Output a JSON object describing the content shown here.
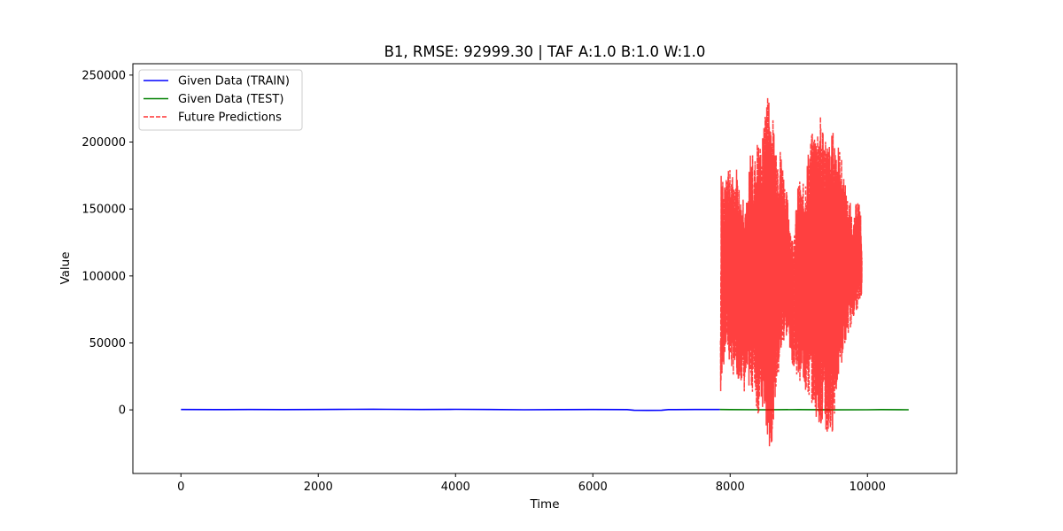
{
  "chart_data": {
    "type": "line",
    "title": "B1, RMSE: 92999.30 | TAF A:1.0 B:1.0 W:1.0",
    "xlabel": "Time",
    "ylabel": "Value",
    "xlim": [
      -700,
      11300
    ],
    "ylim": [
      -47500,
      258500
    ],
    "x_ticks": [
      0,
      2000,
      4000,
      6000,
      8000,
      10000
    ],
    "y_ticks": [
      0,
      50000,
      100000,
      150000,
      200000,
      250000
    ],
    "grid": false,
    "legend_position": "upper-left",
    "series": [
      {
        "name": "Given Data (TRAIN)",
        "color": "#0000ff",
        "style": "solid",
        "x": [
          0,
          500,
          1000,
          1500,
          2000,
          2500,
          2800,
          3000,
          3500,
          4000,
          4500,
          5000,
          5500,
          6000,
          6500,
          6600,
          6800,
          7000,
          7100,
          7500,
          7850
        ],
        "y": [
          300,
          200,
          300,
          200,
          300,
          400,
          500,
          400,
          300,
          400,
          300,
          100,
          200,
          300,
          200,
          -300,
          -400,
          -300,
          200,
          300,
          300
        ]
      },
      {
        "name": "Given Data (TEST)",
        "color": "#008000",
        "style": "solid",
        "x": [
          7850,
          8000,
          8500,
          9000,
          9500,
          10000,
          10200,
          10600
        ],
        "y": [
          300,
          200,
          100,
          200,
          0,
          100,
          200,
          100
        ]
      },
      {
        "name": "Future Predictions",
        "color": "#ff0000",
        "style": "dashed",
        "x": [
          7860,
          7870,
          7880,
          7890,
          7900,
          7950,
          8000,
          8050,
          8100,
          8150,
          8200,
          8250,
          8300,
          8350,
          8400,
          8450,
          8500,
          8520,
          8550,
          8580,
          8600,
          8620,
          8650,
          8700,
          8750,
          8800,
          8850,
          8900,
          8950,
          9000,
          9050,
          9100,
          9150,
          9200,
          9250,
          9300,
          9350,
          9400,
          9450,
          9500,
          9550,
          9600,
          9650,
          9700,
          9750,
          9800,
          9850,
          9900,
          9920
        ],
        "y_high": [
          60000,
          213000,
          120000,
          200000,
          150000,
          195000,
          180000,
          175000,
          185000,
          160000,
          170000,
          155000,
          200000,
          185000,
          205000,
          200000,
          215000,
          244000,
          240000,
          244000,
          225000,
          220000,
          210000,
          200000,
          195000,
          170000,
          155000,
          130000,
          145000,
          175000,
          165000,
          180000,
          200000,
          208000,
          215000,
          221000,
          219000,
          205000,
          200000,
          210000,
          205000,
          195000,
          180000,
          160000,
          155000,
          140000,
          162000,
          150000,
          114000
        ],
        "y_low": [
          -5000,
          20000,
          15000,
          35000,
          30000,
          45000,
          30000,
          25000,
          20000,
          25000,
          10000,
          20000,
          10000,
          15000,
          -5000,
          0,
          -15000,
          -20000,
          -25000,
          -33000,
          -30000,
          -15000,
          5000,
          20000,
          40000,
          55000,
          50000,
          35000,
          30000,
          20000,
          25000,
          10000,
          5000,
          5000,
          -5000,
          -10000,
          -20000,
          -24000,
          -25000,
          -15000,
          10000,
          30000,
          40000,
          55000,
          60000,
          70000,
          75000,
          80000,
          90000
        ]
      }
    ]
  }
}
